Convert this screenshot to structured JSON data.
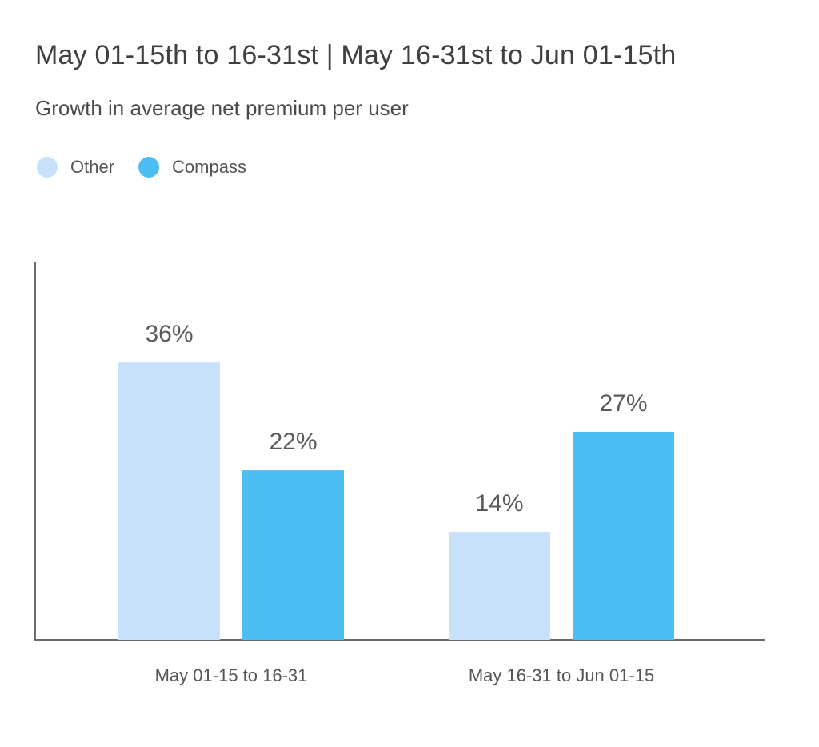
{
  "header": {
    "title": "May 01-15th to 16-31st | May 16-31st to Jun 01-15th",
    "subtitle": "Growth in average net premium per user"
  },
  "legend": [
    {
      "label": "Other",
      "color": "#c7e1fa"
    },
    {
      "label": "Compass",
      "color": "#4cbef4"
    }
  ],
  "chart_data": {
    "type": "bar",
    "title": "May 01-15th to 16-31st | May 16-31st to Jun 01-15th",
    "subtitle": "Growth in average net premium per user",
    "categories": [
      "May 01-15 to 16-31",
      "May 16-31 to Jun 01-15"
    ],
    "series": [
      {
        "name": "Other",
        "values": [
          36,
          14
        ],
        "labels": [
          "36%",
          "14%"
        ],
        "color": "#c7e1fa"
      },
      {
        "name": "Compass",
        "values": [
          22,
          27
        ],
        "labels": [
          "22%",
          "27%"
        ],
        "color": "#4cbef4"
      }
    ],
    "unit": "%",
    "ylim": [
      0,
      49
    ],
    "grid": false,
    "legend_position": "top-left"
  }
}
